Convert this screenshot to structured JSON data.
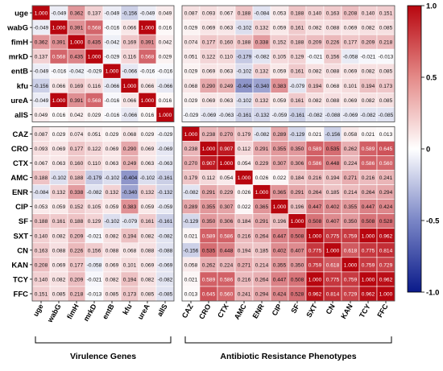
{
  "chart_data": {
    "type": "heatmap",
    "title": "",
    "xlabel": "",
    "ylabel": "",
    "row_labels": [
      "uge",
      "wabG",
      "fimH",
      "mrkD",
      "entB",
      "kfu",
      "ureA",
      "allS",
      "CAZ",
      "CRO",
      "CTX",
      "AMC",
      "ENR",
      "CIP",
      "SF",
      "SXT",
      "CN",
      "KAN",
      "TCY",
      "FFC"
    ],
    "col_labels": [
      "uge",
      "wabG",
      "fimH",
      "mrkD",
      "entB",
      "kfu",
      "ureA",
      "allS",
      "CAZ",
      "CRO",
      "CTX",
      "AMC",
      "ENR",
      "CIP",
      "SF",
      "SXT",
      "CN",
      "KAN",
      "TCY",
      "FFC"
    ],
    "blocks": {
      "virulence_count": 8,
      "row_split_after": 8,
      "col_split_after": 8
    },
    "group_labels": {
      "virulence": "Virulence Genes",
      "antibiotic": "Antibiotic Resistance Phenotypes"
    },
    "values": [
      [
        1.0,
        -0.049,
        0.362,
        0.137,
        -0.049,
        -0.156,
        -0.049,
        0.049,
        0.087,
        0.093,
        0.067,
        0.188,
        -0.084,
        0.053,
        0.188,
        0.14,
        0.163,
        0.208,
        0.14,
        0.151
      ],
      [
        -0.049,
        1.0,
        0.391,
        0.568,
        -0.016,
        0.066,
        1.0,
        0.016,
        0.029,
        0.069,
        0.063,
        -0.102,
        0.132,
        0.059,
        0.161,
        0.082,
        0.088,
        0.069,
        0.082,
        0.085
      ],
      [
        0.362,
        0.391,
        1.0,
        0.435,
        -0.042,
        0.169,
        0.391,
        0.042,
        0.074,
        0.177,
        0.16,
        0.188,
        0.338,
        0.152,
        0.188,
        0.209,
        0.226,
        0.177,
        0.209,
        0.218
      ],
      [
        0.137,
        0.568,
        0.435,
        1.0,
        -0.029,
        0.116,
        0.568,
        0.029,
        0.051,
        0.122,
        0.11,
        -0.179,
        -0.082,
        0.105,
        0.129,
        -0.021,
        0.156,
        -0.058,
        -0.021,
        -0.013
      ],
      [
        -0.049,
        -0.016,
        -0.042,
        -0.029,
        1.0,
        -0.066,
        -0.016,
        -0.016,
        0.029,
        0.069,
        0.063,
        -0.102,
        0.132,
        0.059,
        0.161,
        0.082,
        0.088,
        0.069,
        0.082,
        0.085
      ],
      [
        -0.156,
        0.066,
        0.169,
        0.116,
        -0.066,
        1.0,
        0.066,
        -0.066,
        0.068,
        0.29,
        0.249,
        -0.404,
        -0.34,
        0.383,
        -0.079,
        0.194,
        0.068,
        0.101,
        0.194,
        0.173
      ],
      [
        -0.049,
        1.0,
        0.391,
        0.568,
        -0.016,
        0.066,
        1.0,
        0.016,
        0.029,
        0.069,
        0.063,
        -0.102,
        0.132,
        0.059,
        0.161,
        0.082,
        0.088,
        0.069,
        0.082,
        0.085
      ],
      [
        0.049,
        0.016,
        0.042,
        0.029,
        -0.016,
        -0.066,
        0.016,
        1.0,
        -0.029,
        -0.069,
        -0.063,
        -0.161,
        -0.132,
        -0.059,
        -0.161,
        -0.082,
        -0.088,
        -0.069,
        -0.082,
        -0.085
      ],
      [
        0.087,
        0.029,
        0.074,
        0.051,
        0.029,
        0.068,
        0.029,
        -0.029,
        1.0,
        0.238,
        0.27,
        0.179,
        -0.082,
        0.289,
        -0.129,
        0.021,
        -0.156,
        0.058,
        0.021,
        0.013
      ],
      [
        0.093,
        0.069,
        0.177,
        0.122,
        0.069,
        0.29,
        0.069,
        -0.069,
        0.238,
        1.0,
        0.907,
        0.112,
        0.291,
        0.355,
        0.35,
        0.589,
        0.535,
        0.262,
        0.589,
        0.645
      ],
      [
        0.067,
        0.063,
        0.16,
        0.11,
        0.063,
        0.249,
        0.063,
        -0.063,
        0.27,
        0.907,
        1.0,
        0.054,
        0.229,
        0.307,
        0.306,
        0.586,
        0.448,
        0.224,
        0.586,
        0.56
      ],
      [
        0.188,
        -0.102,
        0.188,
        -0.179,
        -0.102,
        -0.404,
        -0.102,
        -0.161,
        0.179,
        0.112,
        0.054,
        1.0,
        0.026,
        0.022,
        0.184,
        0.216,
        0.194,
        0.271,
        0.216,
        0.241
      ],
      [
        -0.084,
        0.132,
        0.338,
        -0.082,
        0.132,
        -0.34,
        0.132,
        -0.132,
        -0.082,
        0.291,
        0.229,
        0.026,
        1.0,
        0.365,
        0.291,
        0.264,
        0.185,
        0.214,
        0.264,
        0.294
      ],
      [
        0.053,
        0.059,
        0.152,
        0.105,
        0.059,
        0.383,
        0.059,
        -0.059,
        0.289,
        0.355,
        0.307,
        0.022,
        0.365,
        1.0,
        0.196,
        0.447,
        0.402,
        0.355,
        0.447,
        0.424
      ],
      [
        0.188,
        0.161,
        0.188,
        0.129,
        -0.102,
        -0.079,
        0.161,
        -0.161,
        -0.129,
        0.35,
        0.306,
        0.184,
        0.291,
        0.196,
        1.0,
        0.508,
        0.407,
        0.35,
        0.508,
        0.528
      ],
      [
        0.14,
        0.082,
        0.209,
        -0.021,
        0.082,
        0.194,
        0.082,
        -0.082,
        0.021,
        0.589,
        0.586,
        0.216,
        0.264,
        0.447,
        0.508,
        1.0,
        0.775,
        0.759,
        1.0,
        0.962
      ],
      [
        0.163,
        0.088,
        0.226,
        0.156,
        0.088,
        0.068,
        0.088,
        -0.088,
        -0.156,
        0.535,
        0.448,
        0.194,
        0.185,
        0.402,
        0.407,
        0.775,
        1.0,
        0.618,
        0.775,
        0.814
      ],
      [
        0.208,
        0.069,
        0.177,
        -0.058,
        0.069,
        0.101,
        0.069,
        -0.069,
        0.058,
        0.262,
        0.224,
        0.271,
        0.214,
        0.355,
        0.35,
        0.759,
        0.618,
        1.0,
        0.759,
        0.729
      ],
      [
        0.14,
        0.082,
        0.209,
        -0.021,
        0.082,
        0.194,
        0.082,
        -0.082,
        0.021,
        0.589,
        0.586,
        0.216,
        0.264,
        0.447,
        0.508,
        1.0,
        0.775,
        0.759,
        1.0,
        0.962
      ],
      [
        0.151,
        0.085,
        0.218,
        -0.013,
        0.085,
        0.173,
        0.085,
        -0.085,
        0.013,
        0.645,
        0.56,
        0.241,
        0.294,
        0.424,
        0.528,
        0.962,
        0.814,
        0.729,
        0.962,
        1.0
      ]
    ],
    "colorbar": {
      "min": -1.0,
      "max": 1.0,
      "ticks": [
        -1.0,
        -0.5,
        0,
        0.5,
        1.0
      ],
      "tick_labels": [
        "-1.0",
        "-0.5",
        "0",
        "0.5",
        "1.0"
      ]
    },
    "colors": {
      "negative": "#0a1a8a",
      "zero": "#ffffff",
      "positive": "#b8060f",
      "grid": "#ffffff",
      "text_dark": "#111111",
      "text_light": "#ffffff"
    },
    "grid": true,
    "legend_placement": "right"
  }
}
